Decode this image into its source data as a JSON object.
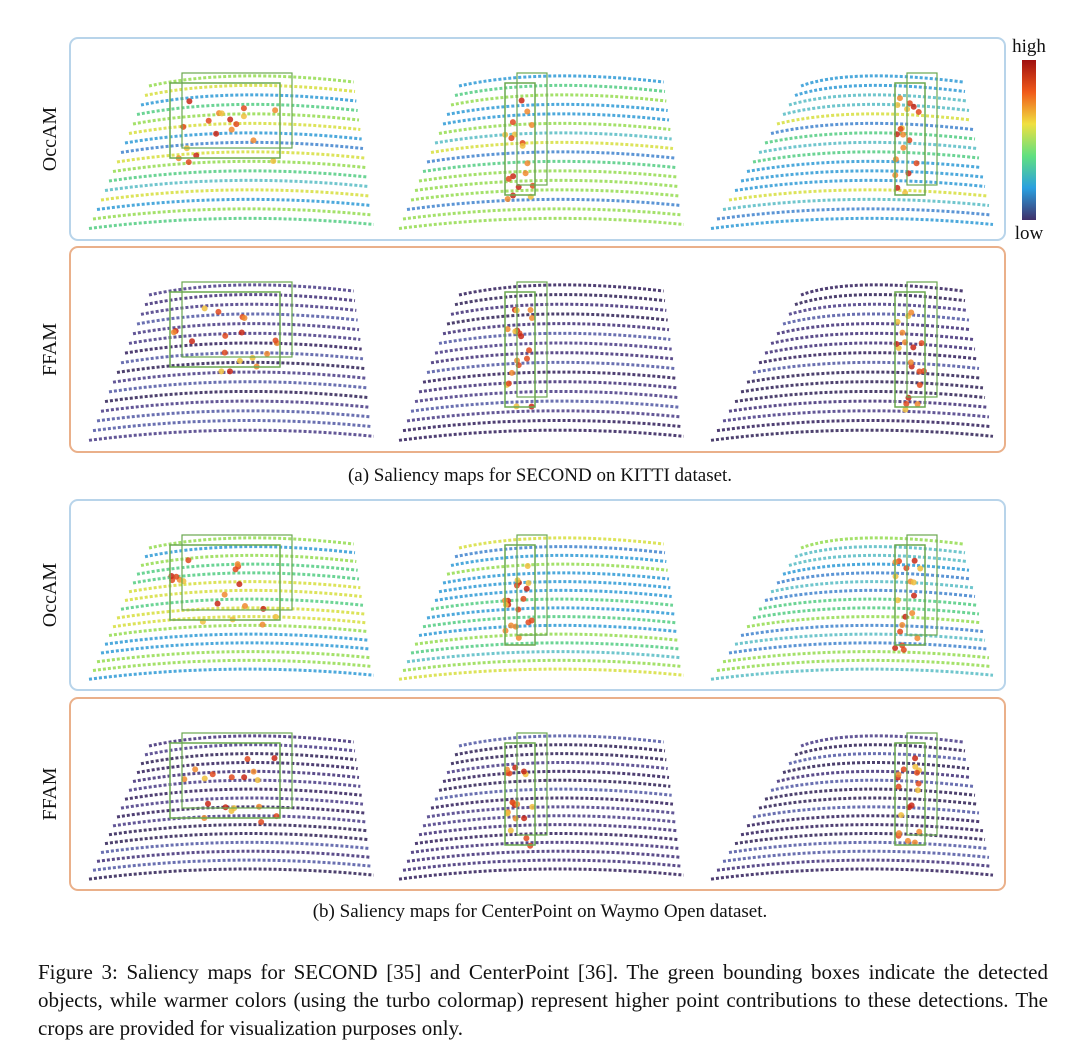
{
  "figure": {
    "colorbar": {
      "high": "high",
      "low": "low"
    },
    "panels": [
      {
        "rows": [
          {
            "label": "OccAM"
          },
          {
            "label": "FFAM"
          }
        ],
        "caption": "(a) Saliency maps for SECOND on KITTI dataset."
      },
      {
        "rows": [
          {
            "label": "OccAM"
          },
          {
            "label": "FFAM"
          }
        ],
        "caption": "(b) Saliency maps for CenterPoint on Waymo Open dataset."
      }
    ],
    "caption": "Figure 3: Saliency maps for SECOND [35] and CenterPoint [36]. The green bounding boxes indicate the detected objects, while warmer colors (using the turbo colormap) represent higher point contributions to these detections. The crops are provided for visualization purposes only."
  }
}
